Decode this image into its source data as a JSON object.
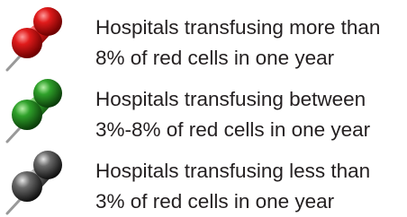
{
  "legend": {
    "items": [
      {
        "lines": [
          "Hospitals transfusing more than",
          "8% of red cells in one year"
        ]
      },
      {
        "lines": [
          "Hospitals transfusing between",
          "3%-8% of red cells in one year"
        ]
      },
      {
        "lines": [
          "Hospitals transfusing less than",
          "3% of red cells in one year"
        ]
      }
    ]
  }
}
